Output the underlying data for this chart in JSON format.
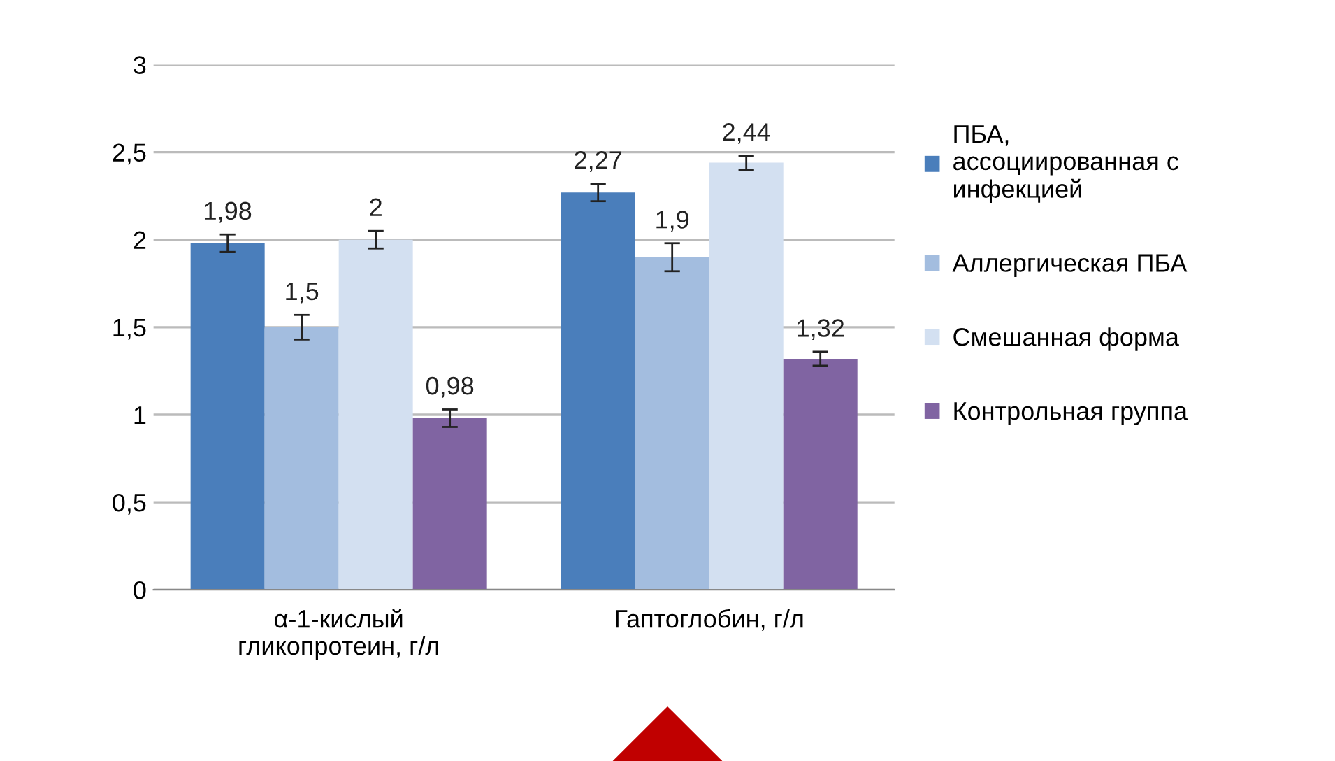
{
  "chart_data": {
    "type": "bar",
    "categories": [
      "α-1-кислый\nгликопротеин, г/л",
      "Гаптоглобин, г/л"
    ],
    "series": [
      {
        "name": "ПБА,\nассоциированная с\nинфекцией",
        "color": "#4a7ebb",
        "values": [
          1.98,
          2.27
        ],
        "errors": [
          0.05,
          0.05
        ],
        "value_labels": [
          "1,98",
          "2,27"
        ]
      },
      {
        "name": "Аллергическая ПБА",
        "color": "#a3bddf",
        "values": [
          1.5,
          1.9
        ],
        "errors": [
          0.07,
          0.08
        ],
        "value_labels": [
          "1,5",
          "1,9"
        ]
      },
      {
        "name": "Смешанная форма",
        "color": "#d3e0f1",
        "values": [
          2,
          2.44
        ],
        "errors": [
          0.05,
          0.04
        ],
        "value_labels": [
          "2",
          "2,44"
        ]
      },
      {
        "name": "Контрольная группа",
        "color": "#8064a2",
        "values": [
          0.98,
          1.32
        ],
        "errors": [
          0.05,
          0.04
        ],
        "value_labels": [
          "0,98",
          "1,32"
        ]
      }
    ],
    "ylim": [
      0,
      3
    ],
    "yticks": [
      0,
      {
        "value": 0.5,
        "label": "0,5"
      },
      1,
      {
        "value": 1.5,
        "label": "1,5"
      },
      2,
      {
        "value": 2.5,
        "label": "2,5"
      },
      3
    ],
    "grid": "y",
    "legend": "right"
  }
}
